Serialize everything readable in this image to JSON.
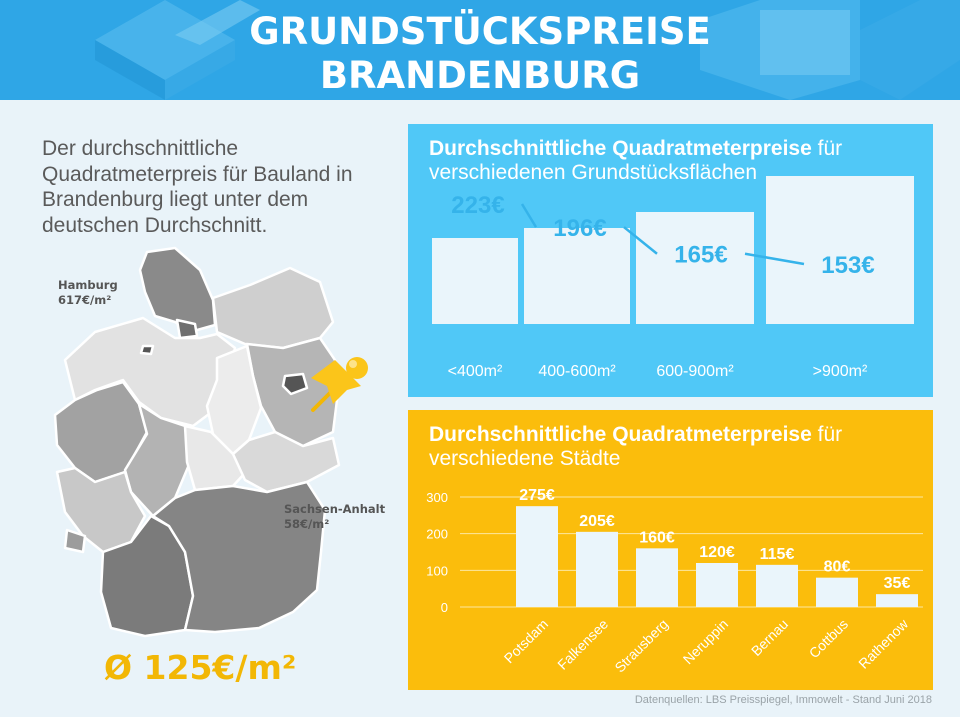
{
  "header": {
    "title_line1": "GRUNDSTÜCKSPREISE",
    "title_line2": "BRANDENBURG"
  },
  "intro_text": "Der durchschnittliche Quadratmeterpreis für Bauland in Brandenburg liegt unter dem deutschen Durchschnitt.",
  "map": {
    "hamburg": {
      "name": "Hamburg",
      "price": "617€/m²"
    },
    "sachsen_anhalt": {
      "name": "Sachsen-Anhalt",
      "price": "58€/m²"
    },
    "average": "Ø 125€/m²"
  },
  "colors": {
    "banner": "#2fa6e6",
    "panel_blue": "#50c8f7",
    "panel_yellow": "#fbbd0c",
    "average": "#f2b705",
    "value_blue": "#35b3ea"
  },
  "chart_data": [
    {
      "type": "line",
      "title_bold": "Durchschnittliche Quadratmeterpreise",
      "title_rest": " für verschiedenen Grundstücksflächen",
      "categories": [
        "<400m²",
        "400-600m²",
        "600-900m²",
        ">900m²"
      ],
      "values": [
        223,
        196,
        165,
        153
      ],
      "value_labels": [
        "223€",
        "196€",
        "165€",
        "153€"
      ]
    },
    {
      "type": "bar",
      "title_bold": "Durchschnittliche Quadratmeterpreise",
      "title_rest": " für verschiedene Städte",
      "categories": [
        "Potsdam",
        "Falkensee",
        "Strausberg",
        "Neruppin",
        "Bernau",
        "Cottbus",
        "Rathenow"
      ],
      "values": [
        275,
        205,
        160,
        120,
        115,
        80,
        35
      ],
      "value_labels": [
        "275€",
        "205€",
        "160€",
        "120€",
        "115€",
        "80€",
        "35€"
      ],
      "yticks": [
        0,
        100,
        200,
        300
      ],
      "ylim": [
        0,
        300
      ],
      "grid": true
    }
  ],
  "source": "Datenquellen: LBS Preisspiegel, Immowelt - Stand Juni 2018"
}
